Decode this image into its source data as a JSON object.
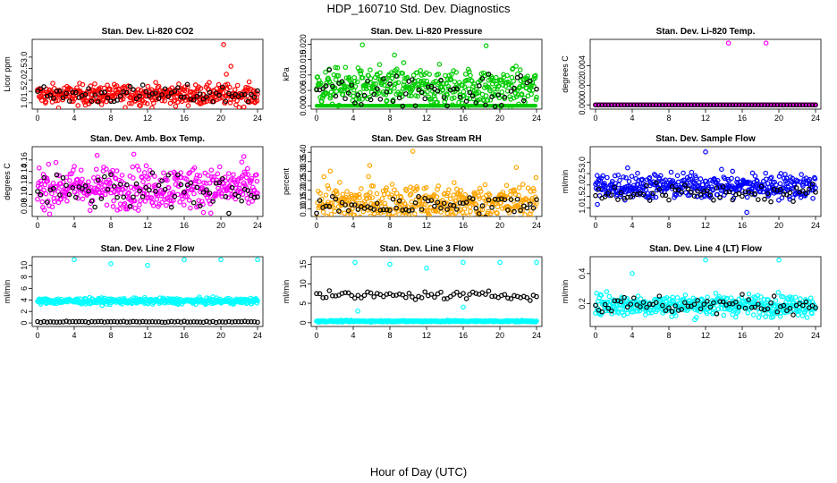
{
  "figure": {
    "title": "HDP_160710  Std. Dev. Diagnostics",
    "xlabel": "Hour of Day (UTC)"
  },
  "chart_data": [
    {
      "type": "scatter",
      "title": "Stan. Dev. Li-820 CO2",
      "ylabel": "Licor ppm",
      "color": "#ff0000",
      "xlim": [
        0,
        24
      ],
      "xticks": [
        0,
        4,
        8,
        12,
        16,
        20,
        24
      ],
      "ylim": [
        0.8,
        3.7
      ],
      "yticks": [
        "1.0",
        "1.5",
        "2.0",
        "2.5",
        "3.0"
      ],
      "base": 1.35,
      "spread": 0.22,
      "secondary": 1.35,
      "secondary_spread": 0.2,
      "outliers": [
        [
          20.3,
          3.55
        ],
        [
          20.6,
          2.25
        ],
        [
          21.1,
          2.6
        ]
      ]
    },
    {
      "type": "scatter",
      "title": "Stan. Dev. Li-820 Pressure",
      "ylabel": "kPa",
      "color": "#00cc00",
      "xlim": [
        0,
        24
      ],
      "xticks": [
        0,
        4,
        8,
        12,
        16,
        20,
        24
      ],
      "ylim": [
        -0.0005,
        0.021
      ],
      "yticks": [
        "0.000",
        "0.005",
        "0.010",
        "0.015",
        "0.020"
      ],
      "base": 0.006,
      "spread": 0.003,
      "secondary": 0.005,
      "secondary_spread": 0.003,
      "zero_line": true,
      "outliers": [
        [
          5.0,
          0.0198
        ],
        [
          18.5,
          0.0195
        ],
        [
          8.5,
          0.0165
        ],
        [
          9.5,
          0.014
        ]
      ]
    },
    {
      "type": "scatter",
      "title": "Stan. Dev. Li-820 Temp.",
      "ylabel": "degrees C",
      "color": "#ff00ff",
      "xlim": [
        0,
        24
      ],
      "xticks": [
        0,
        4,
        8,
        12,
        16,
        20,
        24
      ],
      "ylim": [
        -0.00025,
        0.0065
      ],
      "yticks": [
        "0.000",
        "0.002",
        "0.004"
      ],
      "base": 0.0,
      "spread": 0.0,
      "secondary": 0.0,
      "secondary_spread": 0.0,
      "outliers": [
        [
          14.5,
          0.0063
        ],
        [
          18.6,
          0.0063
        ]
      ]
    },
    {
      "type": "scatter",
      "title": "Stan. Dev. Amb. Box Temp.",
      "ylabel": "degrees C",
      "color": "#ff00ff",
      "xlim": [
        0,
        24
      ],
      "xticks": [
        0,
        4,
        8,
        12,
        16,
        20,
        24
      ],
      "ylim": [
        0.065,
        0.18
      ],
      "yticks": [
        "0.08",
        "0.10",
        "0.12",
        "0.14",
        "0.16"
      ],
      "base": 0.112,
      "spread": 0.018,
      "secondary": 0.105,
      "secondary_spread": 0.015,
      "outliers": [
        [
          6.5,
          0.168
        ],
        [
          10.5,
          0.17
        ],
        [
          22.5,
          0.166
        ]
      ]
    },
    {
      "type": "scatter",
      "title": "Stan. Dev. Gas Stream RH",
      "ylabel": "percent",
      "color": "#ffa500",
      "xlim": [
        0,
        24
      ],
      "xticks": [
        0,
        4,
        8,
        12,
        16,
        20,
        24
      ],
      "ylim": [
        0.07,
        0.42
      ],
      "yticks": [
        "0.10",
        "0.15",
        "0.20",
        "0.25",
        "0.30",
        "0.35",
        "0.40"
      ],
      "base": 0.13,
      "spread": 0.05,
      "secondary": 0.12,
      "secondary_spread": 0.03,
      "outliers": [
        [
          10.5,
          0.405
        ],
        [
          1.5,
          0.3
        ],
        [
          21.8,
          0.32
        ],
        [
          5.8,
          0.33
        ]
      ]
    },
    {
      "type": "scatter",
      "title": "Stan. Dev. Sample Flow",
      "ylabel": "ml/min",
      "color": "#0000ff",
      "xlim": [
        0,
        24
      ],
      "xticks": [
        0,
        4,
        8,
        12,
        16,
        20,
        24
      ],
      "ylim": [
        0.7,
        3.6
      ],
      "yticks": [
        "1.0",
        "1.5",
        "2.0",
        "2.5",
        "3.0"
      ],
      "base": 1.95,
      "spread": 0.28,
      "secondary": 1.65,
      "secondary_spread": 0.2,
      "outliers": [
        [
          12.0,
          3.45
        ],
        [
          3.5,
          2.75
        ],
        [
          16.5,
          0.8
        ],
        [
          0.2,
          1.15
        ]
      ]
    },
    {
      "type": "scatter",
      "title": "Stan. Dev. Line 2 Flow",
      "ylabel": "ml/min",
      "color": "#00ffff",
      "xlim": [
        0,
        24
      ],
      "xticks": [
        0,
        4,
        8,
        12,
        16,
        20,
        24
      ],
      "ylim": [
        -0.3,
        11.2
      ],
      "yticks": [
        "0",
        "2",
        "4",
        "6",
        "8",
        "10"
      ],
      "base": 3.8,
      "spread": 0.25,
      "secondary": 0.2,
      "secondary_spread": 0.05,
      "outliers": [
        [
          4.0,
          11.0
        ],
        [
          8.0,
          10.3
        ],
        [
          12.0,
          10.0
        ],
        [
          16.0,
          11.0
        ],
        [
          20.0,
          11.0
        ],
        [
          24.0,
          11.0
        ]
      ]
    },
    {
      "type": "scatter",
      "title": "Stan. Dev. Line 3 Flow",
      "ylabel": "ml/min",
      "color": "#00ffff",
      "xlim": [
        0,
        24
      ],
      "xticks": [
        0,
        4,
        8,
        12,
        16,
        20,
        24
      ],
      "ylim": [
        -0.5,
        16.5
      ],
      "yticks": [
        "0",
        "5",
        "10",
        "15"
      ],
      "base": 0.4,
      "spread": 0.1,
      "secondary": 7.0,
      "secondary_spread": 0.5,
      "outliers": [
        [
          4.2,
          15.5
        ],
        [
          8.0,
          15.0
        ],
        [
          12.0,
          14.0
        ],
        [
          16.0,
          15.5
        ],
        [
          20.0,
          15.5
        ],
        [
          24.0,
          15.5
        ],
        [
          4.5,
          3.0
        ],
        [
          16.0,
          4.0
        ]
      ]
    },
    {
      "type": "scatter",
      "title": "Stan. Dev. Line 4 (LT) Flow",
      "ylabel": "ml/min",
      "color": "#00ffff",
      "xlim": [
        0,
        24
      ],
      "xticks": [
        0,
        4,
        8,
        12,
        16,
        20,
        24
      ],
      "ylim": [
        0.06,
        0.5
      ],
      "yticks": [
        "0.2",
        "0.4"
      ],
      "base": 0.19,
      "spread": 0.035,
      "secondary": 0.19,
      "secondary_spread": 0.03,
      "outliers": [
        [
          4.0,
          0.4
        ],
        [
          12.0,
          0.49
        ],
        [
          20.0,
          0.49
        ],
        [
          1.2,
          0.28
        ]
      ]
    }
  ]
}
